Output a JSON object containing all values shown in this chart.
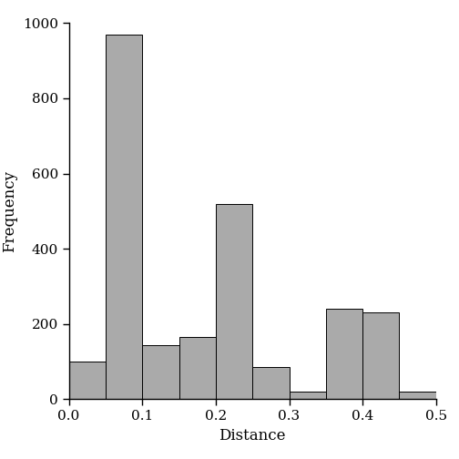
{
  "bin_edges": [
    0.0,
    0.05,
    0.1,
    0.15,
    0.2,
    0.25,
    0.3,
    0.35,
    0.4,
    0.45,
    0.5
  ],
  "frequencies": [
    100,
    970,
    145,
    165,
    520,
    85,
    20,
    240,
    230,
    20
  ],
  "bar_color": "#aaaaaa",
  "bar_edge_color": "#000000",
  "bar_linewidth": 0.7,
  "xlabel": "Distance",
  "ylabel": "Frequency",
  "xlim": [
    0.0,
    0.5
  ],
  "ylim": [
    0,
    1000
  ],
  "xticks": [
    0.0,
    0.1,
    0.2,
    0.3,
    0.4,
    0.5
  ],
  "yticks": [
    0,
    200,
    400,
    600,
    800,
    1000
  ],
  "xlabel_fontsize": 12,
  "ylabel_fontsize": 12,
  "tick_fontsize": 11,
  "background_color": "#ffffff",
  "figsize": [
    5.04,
    5.04
  ],
  "dpi": 100
}
